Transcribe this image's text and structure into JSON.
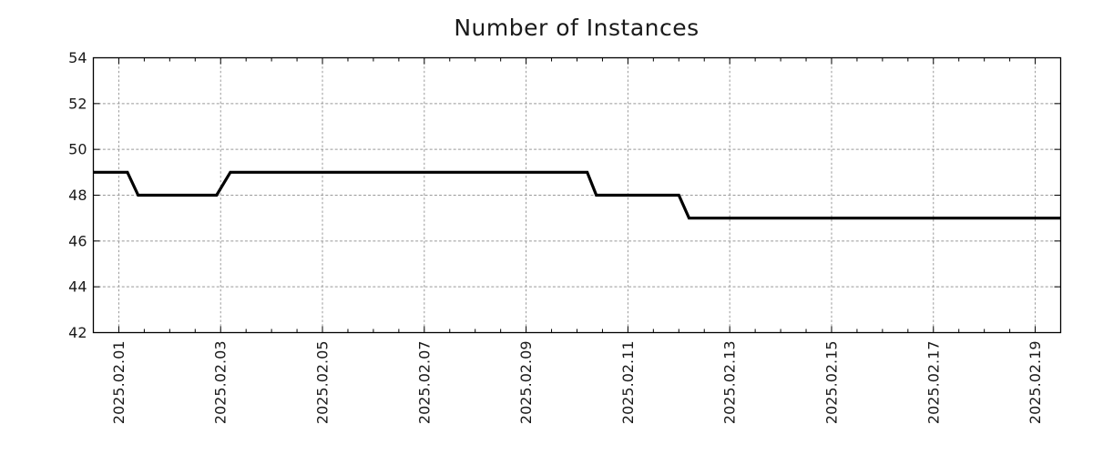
{
  "page": {
    "title": "Number of Instances"
  },
  "colors": {
    "background": "#ffffff",
    "line": "#000000",
    "grid": "#999999",
    "border": "#000000",
    "tick": "#000000",
    "text": "#1a1a1a"
  },
  "chart_data": {
    "type": "line",
    "title": "Number of Instances",
    "xlabel": "",
    "ylabel": "",
    "grid": "dotted",
    "legend": "none",
    "ylim": [
      42,
      54
    ],
    "y_ticks": [
      {
        "value": 42,
        "label": "42"
      },
      {
        "value": 44,
        "label": "44"
      },
      {
        "value": 46,
        "label": "46"
      },
      {
        "value": 48,
        "label": "48"
      },
      {
        "value": 50,
        "label": "50"
      },
      {
        "value": 52,
        "label": "52"
      },
      {
        "value": 54,
        "label": "54"
      }
    ],
    "x_axis": {
      "start": "2025-01-31 12:00",
      "end": "2025-02-19 12:00",
      "range_days_from_feb1": [
        -0.5,
        18.5
      ],
      "minor_tick_interval_days": 0.5,
      "label_rotation_deg": -90,
      "major_ticks": [
        {
          "day": 0,
          "label": "2025.02.01"
        },
        {
          "day": 2,
          "label": "2025.02.03"
        },
        {
          "day": 4,
          "label": "2025.02.05"
        },
        {
          "day": 6,
          "label": "2025.02.07"
        },
        {
          "day": 8,
          "label": "2025.02.09"
        },
        {
          "day": 10,
          "label": "2025.02.11"
        },
        {
          "day": 12,
          "label": "2025.02.13"
        },
        {
          "day": 14,
          "label": "2025.02.15"
        },
        {
          "day": 16,
          "label": "2025.02.17"
        },
        {
          "day": 18,
          "label": "2025.02.19"
        }
      ]
    },
    "series": [
      {
        "name": "instances",
        "color": "#000000",
        "line_width": 3.2,
        "points": [
          {
            "t": "2025-01-31 12:00",
            "day": -0.5,
            "value": 49
          },
          {
            "t": "2025-02-01 04:00",
            "day": 0.17,
            "value": 49
          },
          {
            "t": "2025-02-01 09:00",
            "day": 0.38,
            "value": 48
          },
          {
            "t": "2025-02-02 22:00",
            "day": 1.92,
            "value": 48
          },
          {
            "t": "2025-02-03 04:30",
            "day": 2.19,
            "value": 49
          },
          {
            "t": "2025-02-10 05:00",
            "day": 9.2,
            "value": 49
          },
          {
            "t": "2025-02-10 09:00",
            "day": 9.38,
            "value": 48
          },
          {
            "t": "2025-02-12 00:00",
            "day": 11.0,
            "value": 48
          },
          {
            "t": "2025-02-12 05:00",
            "day": 11.2,
            "value": 47
          },
          {
            "t": "2025-02-19 12:00",
            "day": 18.5,
            "value": 47
          }
        ]
      }
    ]
  }
}
